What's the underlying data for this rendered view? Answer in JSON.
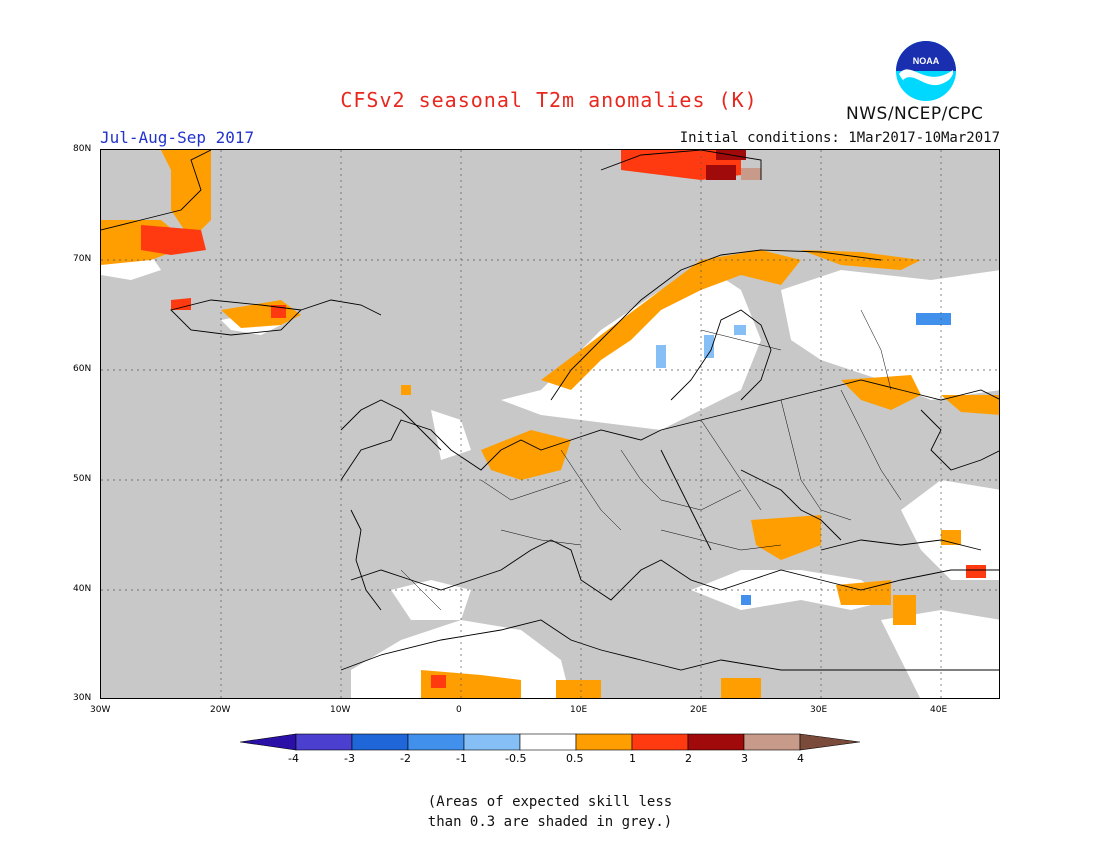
{
  "header": {
    "title": "CFSv2 seasonal T2m anomalies (K)",
    "period": "Jul-Aug-Sep 2017",
    "initial_conditions": "Initial conditions: 1Mar2017-10Mar2017",
    "agency": "NWS/NCEP/CPC",
    "logo_text": "NOAA"
  },
  "map": {
    "extent": {
      "lon": [
        -30,
        45
      ],
      "lat": [
        30,
        80
      ]
    },
    "lat_labels": [
      "80N",
      "70N",
      "60N",
      "50N",
      "40N",
      "30N"
    ],
    "lon_labels": [
      "30W",
      "20W",
      "10W",
      "0",
      "10E",
      "20E",
      "30E",
      "40E"
    ],
    "background": "#c8c8c8",
    "anomaly_regions": [
      {
        "name": "greenland-east",
        "category": "1 to 2"
      },
      {
        "name": "svalbard",
        "category": "2 to 3"
      },
      {
        "name": "norway-coast",
        "category": "0.5 to 1"
      },
      {
        "name": "low-countries",
        "category": "0.5 to 1"
      },
      {
        "name": "russia-south",
        "category": "0.5 to 1"
      },
      {
        "name": "north-africa",
        "category": "0.5 to 1"
      },
      {
        "name": "finland",
        "category": "-1 to -0.5"
      }
    ]
  },
  "colorbar": {
    "boundaries": [
      "-4",
      "-3",
      "-2",
      "-1",
      "-0.5",
      "0.5",
      "1",
      "2",
      "3",
      "4"
    ],
    "colors": [
      "#2a10a6",
      "#4a3fcf",
      "#1f66d8",
      "#4090ec",
      "#86bff5",
      "#ffffff",
      "#ff9e00",
      "#ff3a10",
      "#a00a0a",
      "#c89a8a",
      "#7a4a3a"
    ]
  },
  "footnote": {
    "line1": "(Areas of expected skill less",
    "line2": "than 0.3 are shaded in grey.)"
  }
}
